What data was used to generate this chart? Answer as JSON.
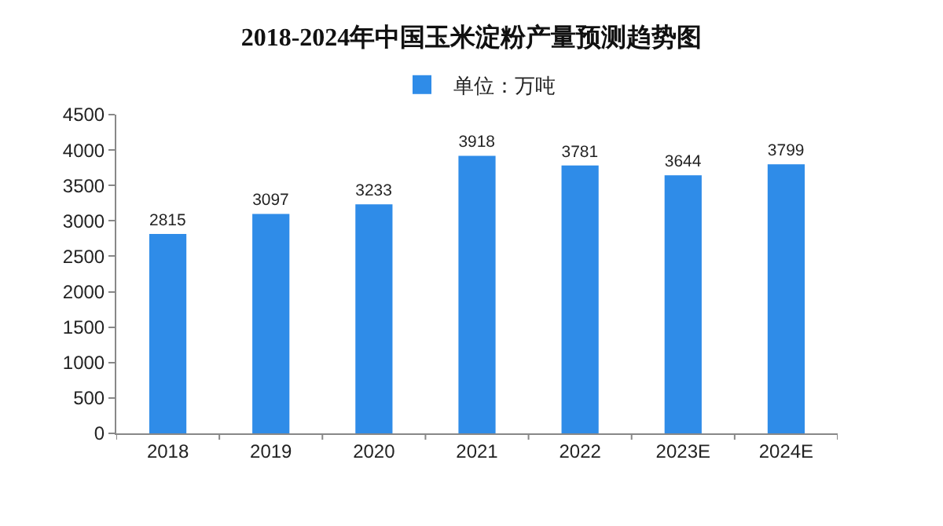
{
  "chart_data": {
    "type": "bar",
    "title": "2018-2024年中国玉米淀粉产量预测趋势图",
    "categories": [
      "2018",
      "2019",
      "2020",
      "2021",
      "2022",
      "2023E",
      "2024E"
    ],
    "series": [
      {
        "name": "单位：万吨",
        "color": "#2f8ce8",
        "values": [
          2815,
          3097,
          3233,
          3918,
          3781,
          3644,
          3799
        ]
      }
    ],
    "ylim": [
      0,
      4500
    ],
    "yticks": [
      0,
      500,
      1000,
      1500,
      2000,
      2500,
      3000,
      3500,
      4000,
      4500
    ],
    "grid": false,
    "legend": "top",
    "data_labels": true
  }
}
